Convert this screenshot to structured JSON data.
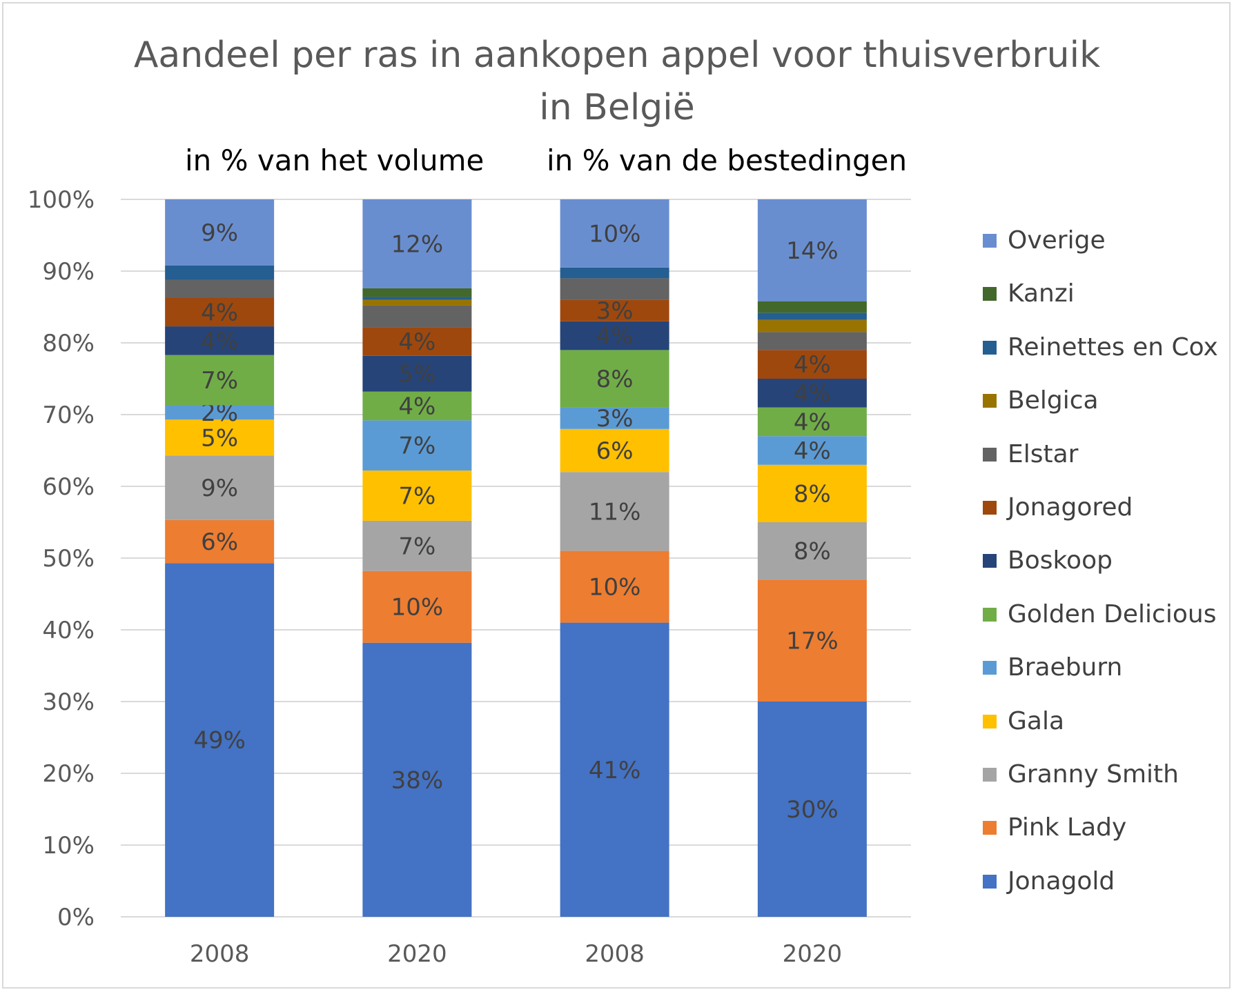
{
  "chart_data": {
    "type": "bar",
    "stacked": true,
    "title": "Aandeel per ras in aankopen appel voor thuisverbruik in België",
    "title_lines": [
      "Aandeel per ras in aankopen appel voor thuisverbruik",
      "in België"
    ],
    "group_labels": [
      "in % van het volume",
      "in % van de bestedingen"
    ],
    "categories": [
      "2008",
      "2020",
      "2008",
      "2020"
    ],
    "ylim": [
      0,
      100
    ],
    "yticks": [
      "0%",
      "10%",
      "20%",
      "30%",
      "40%",
      "50%",
      "60%",
      "70%",
      "80%",
      "90%",
      "100%"
    ],
    "grid": true,
    "legend_position": "right",
    "series": [
      {
        "name": "Jonagold",
        "color": "#4472C4",
        "values": [
          49.3,
          38.2,
          41.0,
          30.0
        ],
        "labels": [
          "49%",
          "38%",
          "41%",
          "30%"
        ]
      },
      {
        "name": "Pink Lady",
        "color": "#ED7D31",
        "values": [
          6.0,
          10.0,
          10.0,
          17.0
        ],
        "labels": [
          "6%",
          "10%",
          "10%",
          "17%"
        ]
      },
      {
        "name": "Granny Smith",
        "color": "#A5A5A5",
        "values": [
          9.0,
          7.0,
          11.0,
          8.0
        ],
        "labels": [
          "9%",
          "7%",
          "11%",
          "8%"
        ]
      },
      {
        "name": "Gala",
        "color": "#FFC000",
        "values": [
          5.0,
          7.0,
          6.0,
          8.0
        ],
        "labels": [
          "5%",
          "7%",
          "6%",
          "8%"
        ]
      },
      {
        "name": "Braeburn",
        "color": "#5B9BD5",
        "values": [
          2.0,
          7.0,
          3.0,
          4.0
        ],
        "labels": [
          "2%",
          "7%",
          "3%",
          "4%"
        ]
      },
      {
        "name": "Golden Delicious",
        "color": "#70AD47",
        "values": [
          7.0,
          4.0,
          8.0,
          4.0
        ],
        "labels": [
          "7%",
          "4%",
          "8%",
          "4%"
        ]
      },
      {
        "name": "Boskoop",
        "color": "#264478",
        "values": [
          4.0,
          5.0,
          4.0,
          4.0
        ],
        "labels": [
          "4%",
          "5%",
          "4%",
          "4%"
        ]
      },
      {
        "name": "Jonagored",
        "color": "#9E480E",
        "values": [
          4.0,
          4.0,
          3.0,
          4.0
        ],
        "labels": [
          "4%",
          "4%",
          "3%",
          "4%"
        ]
      },
      {
        "name": "Elstar",
        "color": "#636363",
        "values": [
          2.5,
          3.0,
          3.0,
          2.5
        ],
        "labels": [
          "",
          "",
          "",
          ""
        ]
      },
      {
        "name": "Belgica",
        "color": "#997300",
        "values": [
          0.0,
          0.8,
          0.0,
          1.7
        ],
        "labels": [
          "",
          "",
          "",
          ""
        ]
      },
      {
        "name": "Reinettes en Cox",
        "color": "#255E91",
        "values": [
          2.0,
          0.4,
          1.5,
          1.0
        ],
        "labels": [
          "",
          "",
          "",
          ""
        ]
      },
      {
        "name": "Kanzi",
        "color": "#43682B",
        "values": [
          0.0,
          1.2,
          0.0,
          1.6
        ],
        "labels": [
          "",
          "",
          "",
          ""
        ]
      },
      {
        "name": "Overige",
        "color": "#698ED0",
        "values": [
          9.2,
          12.4,
          9.5,
          14.2
        ],
        "labels": [
          "9%",
          "12%",
          "10%",
          "14%"
        ]
      }
    ],
    "legend_order": [
      "Overige",
      "Kanzi",
      "Reinettes en Cox",
      "Belgica",
      "Elstar",
      "Jonagored",
      "Boskoop",
      "Golden Delicious",
      "Braeburn",
      "Gala",
      "Granny Smith",
      "Pink Lady",
      "Jonagold"
    ]
  }
}
